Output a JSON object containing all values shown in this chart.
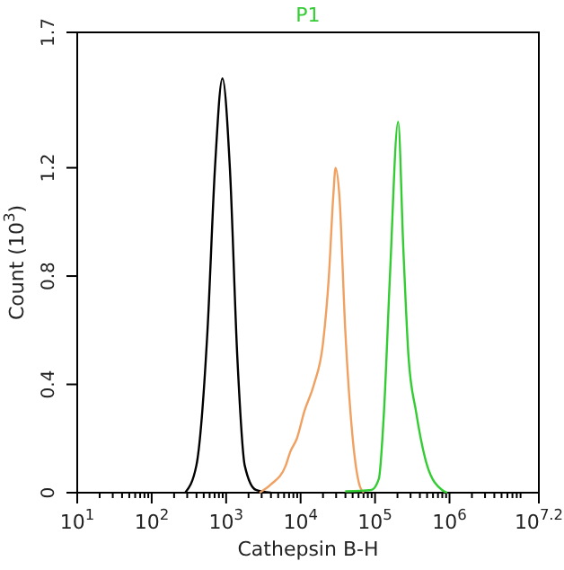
{
  "chart_data": {
    "type": "line",
    "title": "P1",
    "xlabel": "Cathepsin B-H",
    "ylabel": "Count (10$^{3}$)",
    "log": "x",
    "marker": "none",
    "line_style": "solid",
    "grid": false,
    "xlim": [
      10,
      15848932
    ],
    "ylim": [
      0,
      1.7
    ],
    "xticks": [
      {
        "value": 10,
        "label": "10$^{1}$"
      },
      {
        "value": 100,
        "label": "10$^{2}$"
      },
      {
        "value": 1000,
        "label": "10$^{3}$"
      },
      {
        "value": 10000,
        "label": "10$^{4}$"
      },
      {
        "value": 100000,
        "label": "10$^{5}$"
      },
      {
        "value": 1000000,
        "label": "10$^{6}$"
      },
      {
        "value": 15848932,
        "label": "10$^{7.2}$"
      },
      {
        "value": 20,
        "label": null
      },
      {
        "value": 30,
        "label": null
      },
      {
        "value": 40,
        "label": null
      },
      {
        "value": 50,
        "label": null
      },
      {
        "value": 60,
        "label": null
      },
      {
        "value": 70,
        "label": null
      },
      {
        "value": 80,
        "label": null
      },
      {
        "value": 90,
        "label": null
      },
      {
        "value": 200,
        "label": null
      },
      {
        "value": 300,
        "label": null
      },
      {
        "value": 400,
        "label": null
      },
      {
        "value": 500,
        "label": null
      },
      {
        "value": 600,
        "label": null
      },
      {
        "value": 700,
        "label": null
      },
      {
        "value": 800,
        "label": null
      },
      {
        "value": 900,
        "label": null
      },
      {
        "value": 2000,
        "label": null
      },
      {
        "value": 3000,
        "label": null
      },
      {
        "value": 4000,
        "label": null
      },
      {
        "value": 5000,
        "label": null
      },
      {
        "value": 6000,
        "label": null
      },
      {
        "value": 7000,
        "label": null
      },
      {
        "value": 8000,
        "label": null
      },
      {
        "value": 9000,
        "label": null
      },
      {
        "value": 20000,
        "label": null
      },
      {
        "value": 30000,
        "label": null
      },
      {
        "value": 40000,
        "label": null
      },
      {
        "value": 50000,
        "label": null
      },
      {
        "value": 60000,
        "label": null
      },
      {
        "value": 70000,
        "label": null
      },
      {
        "value": 80000,
        "label": null
      },
      {
        "value": 90000,
        "label": null
      },
      {
        "value": 200000,
        "label": null
      },
      {
        "value": 300000,
        "label": null
      },
      {
        "value": 400000,
        "label": null
      },
      {
        "value": 500000,
        "label": null
      },
      {
        "value": 600000,
        "label": null
      },
      {
        "value": 700000,
        "label": null
      },
      {
        "value": 800000,
        "label": null
      },
      {
        "value": 900000,
        "label": null
      },
      {
        "value": 2000000,
        "label": null
      },
      {
        "value": 3000000,
        "label": null
      },
      {
        "value": 4000000,
        "label": null
      },
      {
        "value": 5000000,
        "label": null
      },
      {
        "value": 6000000,
        "label": null
      },
      {
        "value": 7000000,
        "label": null
      },
      {
        "value": 8000000,
        "label": null
      },
      {
        "value": 9000000,
        "label": null
      }
    ],
    "yticks": [
      0,
      0.4,
      0.8,
      1.2,
      1.7
    ],
    "series": [
      {
        "color": "#000000",
        "x": [
          282,
          398,
          562,
          708,
          891,
          1122,
          1413,
          1778,
          2512,
          3981
        ],
        "values": [
          0,
          0.1,
          0.6,
          1.2,
          1.53,
          1.2,
          0.5,
          0.1,
          0.01,
          0
        ]
      },
      {
        "color": "#f0a060",
        "x": [
          2818,
          3981,
          6310,
          7244,
          8913,
          11220,
          15136,
          19953,
          23988,
          27542,
          29512,
          33113,
          39811,
          50119,
          63096,
          70795
        ],
        "values": [
          0,
          0.03,
          0.1,
          0.15,
          0.2,
          0.3,
          0.4,
          0.55,
          0.8,
          1.1,
          1.2,
          1.1,
          0.6,
          0.2,
          0.02,
          0
        ]
      },
      {
        "color": "#33cc33",
        "x": [
          39811,
          89125,
          112202,
          131826,
          158489,
          204174,
          239883,
          281838,
          354813,
          501187,
          794328,
          933254
        ],
        "values": [
          0.005,
          0.01,
          0.05,
          0.3,
          0.8,
          1.37,
          0.9,
          0.5,
          0.3,
          0.1,
          0.01,
          0
        ]
      }
    ]
  }
}
